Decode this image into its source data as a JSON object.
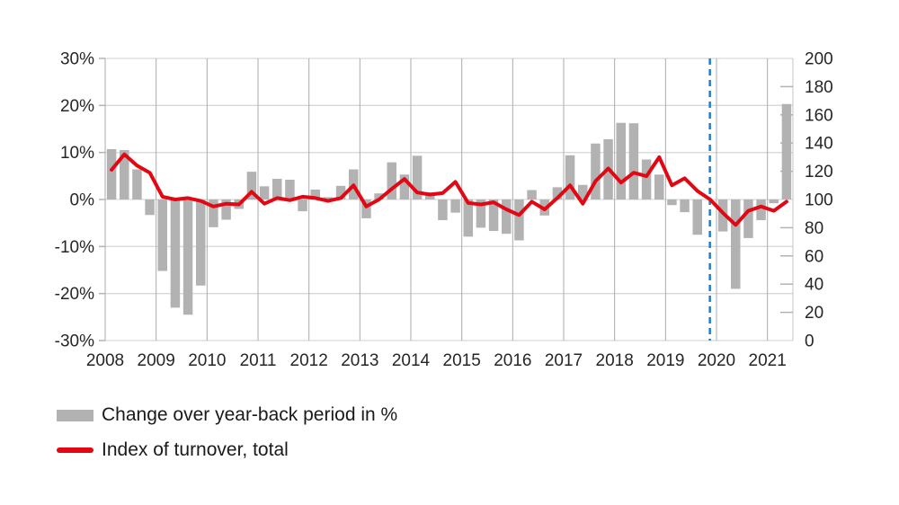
{
  "chart_data": {
    "type": "bar",
    "subtype": "bar-line-combo",
    "title": "",
    "categories": [
      "2008 Q1",
      "2008 Q2",
      "2008 Q3",
      "2008 Q4",
      "2009 Q1",
      "2009 Q2",
      "2009 Q3",
      "2009 Q4",
      "2010 Q1",
      "2010 Q2",
      "2010 Q3",
      "2010 Q4",
      "2011 Q1",
      "2011 Q2",
      "2011 Q3",
      "2011 Q4",
      "2012 Q1",
      "2012 Q2",
      "2012 Q3",
      "2012 Q4",
      "2013 Q1",
      "2013 Q2",
      "2013 Q3",
      "2013 Q4",
      "2014 Q1",
      "2014 Q2",
      "2014 Q3",
      "2014 Q4",
      "2015 Q1",
      "2015 Q2",
      "2015 Q3",
      "2015 Q4",
      "2016 Q1",
      "2016 Q2",
      "2016 Q3",
      "2016 Q4",
      "2017 Q1",
      "2017 Q2",
      "2017 Q3",
      "2017 Q4",
      "2018 Q1",
      "2018 Q2",
      "2018 Q3",
      "2018 Q4",
      "2019 Q1",
      "2019 Q2",
      "2019 Q3",
      "2019 Q4",
      "2020 Q1",
      "2020 Q2",
      "2020 Q3",
      "2020 Q4",
      "2021 Q1",
      "2021 Q2"
    ],
    "series": [
      {
        "name": "Change over year-back period in %",
        "type": "bar",
        "axis": "left",
        "unit": "%",
        "values": [
          10.7,
          10.5,
          6.4,
          -3.3,
          -15.2,
          -23.0,
          -24.5,
          -18.3,
          -5.9,
          -4.3,
          -2.0,
          5.9,
          2.8,
          4.4,
          4.2,
          -2.5,
          2.1,
          0.5,
          2.9,
          6.4,
          -4.0,
          1.3,
          7.9,
          5.3,
          9.3,
          1.5,
          -4.4,
          -2.8,
          -7.9,
          -6.0,
          -6.7,
          -7.3,
          -8.7,
          2.0,
          -3.4,
          2.6,
          9.4,
          3.1,
          11.9,
          12.8,
          16.3,
          16.2,
          8.5,
          5.3,
          -1.2,
          -2.7,
          -7.5,
          0.0,
          -6.8,
          -19.0,
          -8.2,
          -4.4,
          -0.8,
          20.3
        ]
      },
      {
        "name": "Index of turnover, total",
        "type": "line",
        "axis": "right",
        "values": [
          121,
          132,
          124,
          119,
          102,
          100,
          101,
          99,
          95,
          97,
          96.5,
          105.5,
          97,
          101,
          99.5,
          102,
          101,
          99,
          101,
          110,
          95,
          100,
          107.5,
          114.5,
          105,
          103.5,
          104.5,
          112.5,
          97.5,
          96.5,
          98,
          93,
          89,
          98.5,
          93,
          101,
          110,
          97,
          113,
          122,
          112,
          119,
          116.5,
          130,
          110,
          115,
          106,
          100,
          90.5,
          82,
          92,
          95,
          92,
          98.5
        ]
      }
    ],
    "x_tick_labels": [
      "2008",
      "2009",
      "2010",
      "2011",
      "2012",
      "2013",
      "2014",
      "2015",
      "2016",
      "2017",
      "2018",
      "2019",
      "2020",
      "2021"
    ],
    "x_range_years": [
      2008,
      2021.5
    ],
    "left_axis": {
      "tick_labels": [
        "30%",
        "20%",
        "10%",
        "0%",
        "-10%",
        "-20%",
        "-30%"
      ],
      "tick_values": [
        30,
        20,
        10,
        0,
        -10,
        -20,
        -30
      ],
      "min": -30,
      "max": 30,
      "grid": true
    },
    "right_axis": {
      "tick_labels": [
        "200",
        "180",
        "160",
        "140",
        "120",
        "100",
        "80",
        "60",
        "40",
        "20",
        "0"
      ],
      "tick_values": [
        200,
        180,
        160,
        140,
        120,
        100,
        80,
        60,
        40,
        20,
        0
      ],
      "minor_tick_values": [
        180,
        160,
        140,
        120,
        80,
        60,
        40,
        20
      ],
      "min": 0,
      "max": 200
    },
    "annotation_line": {
      "style": "dashed",
      "orientation": "vertical",
      "position_year": 2019.87
    },
    "legend_position": "bottom-left"
  },
  "legend": {
    "items": [
      {
        "label": "Change over year-back period in %",
        "swatch": "bar",
        "color": "#b2b2b2"
      },
      {
        "label": "Index of turnover, total",
        "swatch": "line",
        "color": "#e30613"
      }
    ]
  },
  "colors": {
    "bar": "#b2b2b2",
    "line": "#e30613",
    "dashed_line": "#1f7ed0",
    "grid_horizontal": "#d9d9d9",
    "grid_vertical": "#ababab",
    "plot_border": "#c4c4c4",
    "tick": "#b3b3b3",
    "axis_text": "#262626"
  }
}
